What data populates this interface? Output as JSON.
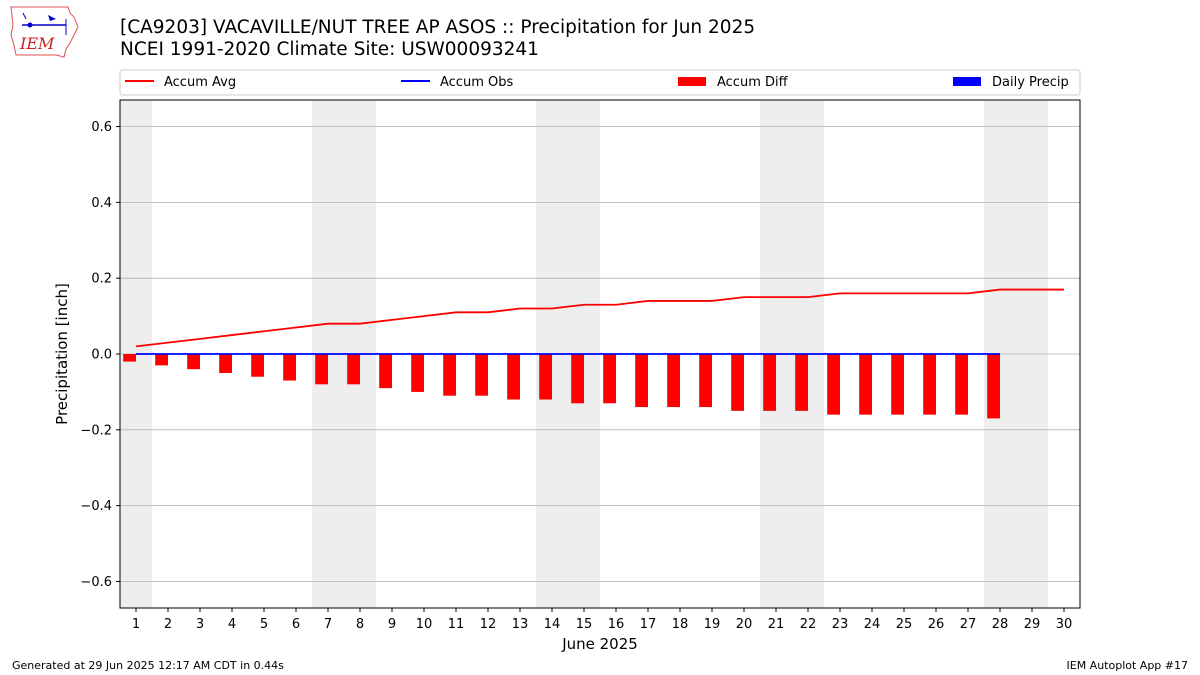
{
  "logo": {
    "text": "IEM",
    "icon": "iem-iowa-logo-icon"
  },
  "title_line1": "[CA9203] VACAVILLE/NUT TREE AP ASOS :: Precipitation for Jun 2025",
  "title_line2": "NCEI 1991-2020 Climate Site: USW00093241",
  "footer_left": "Generated at 29 Jun 2025 12:17 AM CDT in 0.44s",
  "footer_right": "IEM Autoplot App #17",
  "colors": {
    "accum_avg": "#ff0000",
    "accum_obs": "#0000ff",
    "accum_diff": "#ff0000",
    "daily_precip": "#0000ff",
    "weekend_shade": "#eeeeee",
    "grid": "#b0b0b0"
  },
  "chart_data": {
    "type": "bar",
    "xlabel": "June 2025",
    "ylabel": "Precipitation [inch]",
    "ylim": [
      -0.67,
      0.67
    ],
    "yticks": [
      -0.6,
      -0.4,
      -0.2,
      0.0,
      0.2,
      0.4,
      0.6
    ],
    "ytick_labels": [
      "−0.6",
      "−0.4",
      "−0.2",
      "0.0",
      "0.2",
      "0.4",
      "0.6"
    ],
    "x": [
      1,
      2,
      3,
      4,
      5,
      6,
      7,
      8,
      9,
      10,
      11,
      12,
      13,
      14,
      15,
      16,
      17,
      18,
      19,
      20,
      21,
      22,
      23,
      24,
      25,
      26,
      27,
      28,
      29,
      30
    ],
    "x_tick_labels": [
      "1",
      "2",
      "3",
      "4",
      "5",
      "6",
      "7",
      "8",
      "9",
      "10",
      "11",
      "12",
      "13",
      "14",
      "15",
      "16",
      "17",
      "18",
      "19",
      "20",
      "21",
      "22",
      "23",
      "24",
      "25",
      "26",
      "27",
      "28",
      "29",
      "30"
    ],
    "grid": "horizontal",
    "legend_position": "top",
    "shaded_weekend_days": [
      1,
      7,
      8,
      14,
      15,
      21,
      22,
      28,
      29
    ],
    "series": [
      {
        "name": "Accum Avg",
        "type": "line",
        "x": [
          1,
          2,
          3,
          4,
          5,
          6,
          7,
          8,
          9,
          10,
          11,
          12,
          13,
          14,
          15,
          16,
          17,
          18,
          19,
          20,
          21,
          22,
          23,
          24,
          25,
          26,
          27,
          28,
          29,
          30
        ],
        "values": [
          0.02,
          0.03,
          0.04,
          0.05,
          0.06,
          0.07,
          0.08,
          0.08,
          0.09,
          0.1,
          0.11,
          0.11,
          0.12,
          0.12,
          0.13,
          0.13,
          0.14,
          0.14,
          0.14,
          0.15,
          0.15,
          0.15,
          0.16,
          0.16,
          0.16,
          0.16,
          0.16,
          0.17,
          0.17,
          0.17
        ]
      },
      {
        "name": "Accum Obs",
        "type": "line",
        "x": [
          1,
          2,
          3,
          4,
          5,
          6,
          7,
          8,
          9,
          10,
          11,
          12,
          13,
          14,
          15,
          16,
          17,
          18,
          19,
          20,
          21,
          22,
          23,
          24,
          25,
          26,
          27,
          28
        ],
        "values": [
          0,
          0,
          0,
          0,
          0,
          0,
          0,
          0,
          0,
          0,
          0,
          0,
          0,
          0,
          0,
          0,
          0,
          0,
          0,
          0,
          0,
          0,
          0,
          0,
          0,
          0,
          0,
          0
        ]
      },
      {
        "name": "Accum Diff",
        "type": "bar",
        "x": [
          1,
          2,
          3,
          4,
          5,
          6,
          7,
          8,
          9,
          10,
          11,
          12,
          13,
          14,
          15,
          16,
          17,
          18,
          19,
          20,
          21,
          22,
          23,
          24,
          25,
          26,
          27,
          28
        ],
        "values": [
          -0.02,
          -0.03,
          -0.04,
          -0.05,
          -0.06,
          -0.07,
          -0.08,
          -0.08,
          -0.09,
          -0.1,
          -0.11,
          -0.11,
          -0.12,
          -0.12,
          -0.13,
          -0.13,
          -0.14,
          -0.14,
          -0.14,
          -0.15,
          -0.15,
          -0.15,
          -0.16,
          -0.16,
          -0.16,
          -0.16,
          -0.16,
          -0.17
        ]
      },
      {
        "name": "Daily Precip",
        "type": "bar",
        "x": [
          1,
          2,
          3,
          4,
          5,
          6,
          7,
          8,
          9,
          10,
          11,
          12,
          13,
          14,
          15,
          16,
          17,
          18,
          19,
          20,
          21,
          22,
          23,
          24,
          25,
          26,
          27,
          28
        ],
        "values": [
          0,
          0,
          0,
          0,
          0,
          0,
          0,
          0,
          0,
          0,
          0,
          0,
          0,
          0,
          0,
          0,
          0,
          0,
          0,
          0,
          0,
          0,
          0,
          0,
          0,
          0,
          0,
          0
        ]
      }
    ]
  }
}
